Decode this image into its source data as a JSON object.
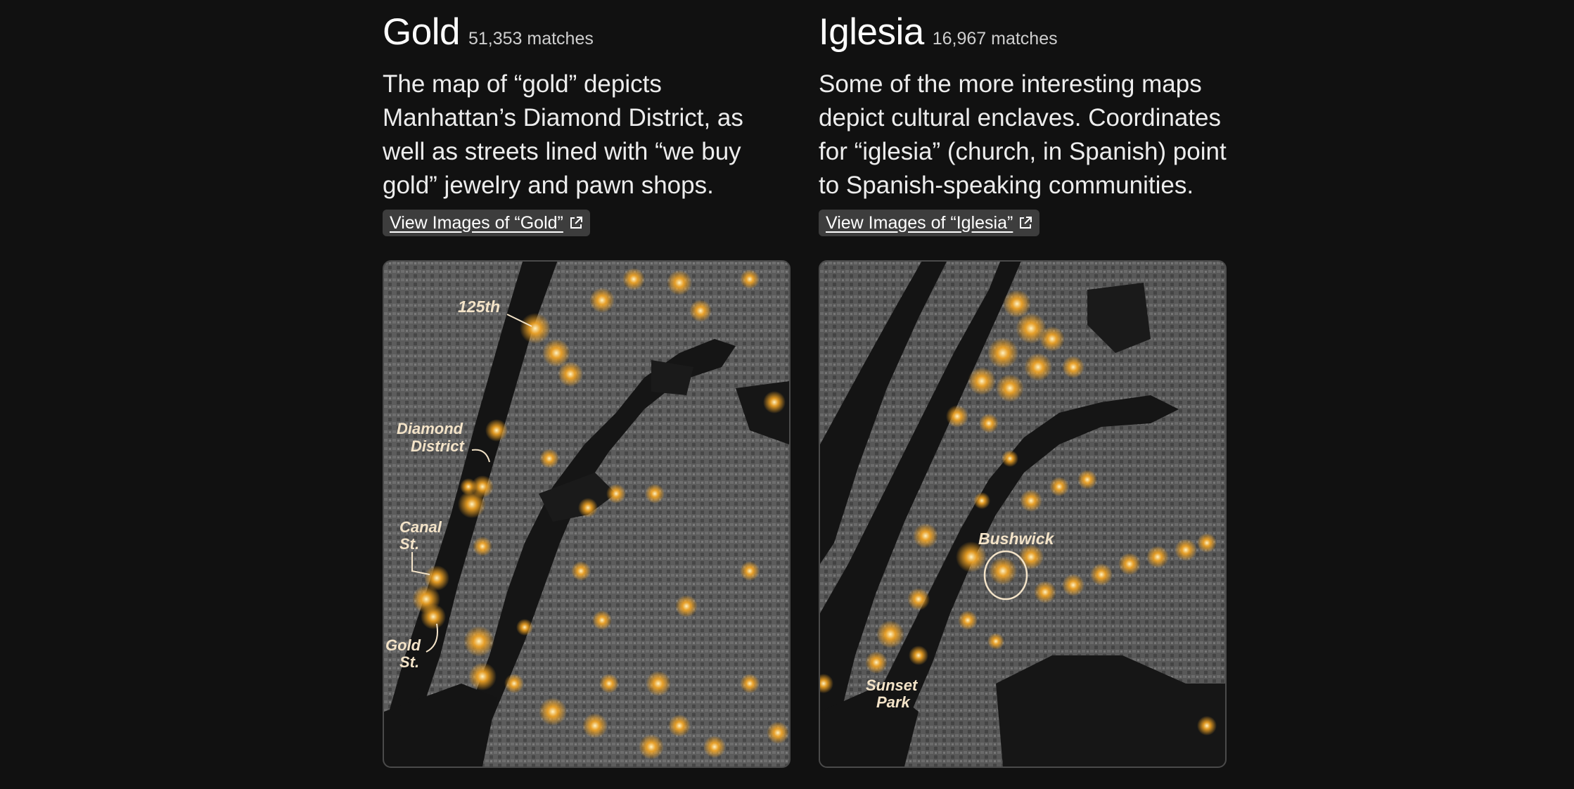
{
  "panels": [
    {
      "term": "Gold",
      "count": "51,353 matches",
      "description": "The map of “gold” depicts Manhattan’s Diamond District, as well as streets lined with “we buy gold” jewelry and pawn shops.",
      "link_label": "View Images of “Gold”",
      "link_icon": "external-link-icon",
      "map_labels": [
        "125th",
        "Diamond",
        "District",
        "Canal",
        "St.",
        "Gold",
        "St."
      ]
    },
    {
      "term": "Iglesia",
      "count": "16,967 matches",
      "description": "Some of the more interesting maps depict cultural enclaves. Coordinates for “iglesia” (church, in Spanish) point to Spanish-speaking communities.",
      "link_label": "View Images of “Iglesia”",
      "link_icon": "external-link-icon",
      "map_labels": [
        "Bushwick",
        "Sunset",
        "Park"
      ]
    }
  ],
  "colors": {
    "background": "#111111",
    "glow": "#f5a623",
    "land": "#5a5a5a",
    "water": "#121212",
    "label": "#f3e3c8"
  }
}
